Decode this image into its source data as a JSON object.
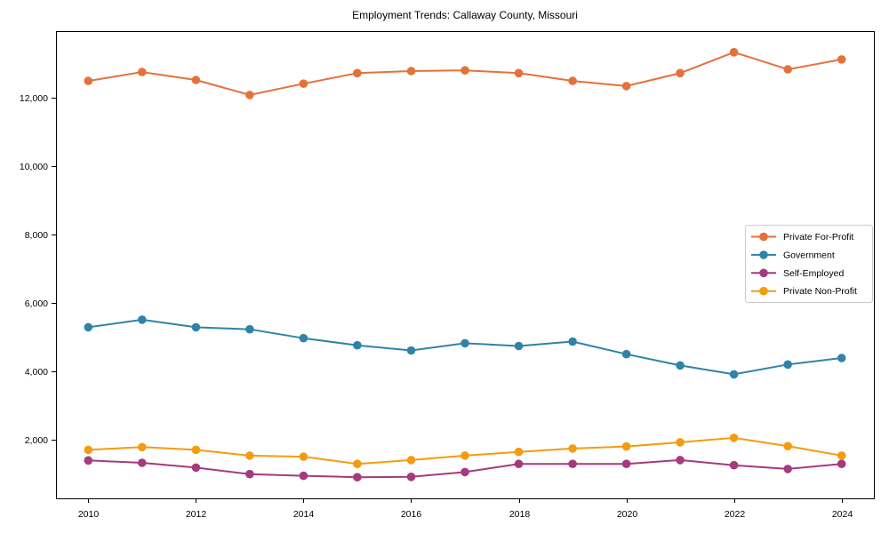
{
  "chart_data": {
    "type": "line",
    "title": "Employment Trends: Callaway County, Missouri",
    "xlabel": "",
    "ylabel": "",
    "x": [
      2010,
      2011,
      2012,
      2013,
      2014,
      2015,
      2016,
      2017,
      2018,
      2019,
      2020,
      2021,
      2022,
      2023,
      2024
    ],
    "series": [
      {
        "name": "Private For-Profit",
        "color": "#e5713a",
        "values": [
          12500,
          12760,
          12530,
          12090,
          12420,
          12730,
          12790,
          12810,
          12730,
          12500,
          12350,
          12730,
          13340,
          12840,
          13130
        ]
      },
      {
        "name": "Government",
        "color": "#3083a8",
        "values": [
          5290,
          5510,
          5290,
          5230,
          4970,
          4760,
          4610,
          4820,
          4740,
          4870,
          4500,
          4170,
          3910,
          4200,
          4390
        ]
      },
      {
        "name": "Self-Employed",
        "color": "#a53a7d",
        "values": [
          1390,
          1320,
          1180,
          990,
          940,
          900,
          910,
          1050,
          1290,
          1290,
          1290,
          1400,
          1250,
          1140,
          1290
        ]
      },
      {
        "name": "Private Non-Profit",
        "color": "#f39c10",
        "values": [
          1700,
          1780,
          1700,
          1530,
          1500,
          1290,
          1400,
          1530,
          1640,
          1740,
          1800,
          1920,
          2050,
          1810,
          1530
        ]
      }
    ],
    "xticks": [
      2010,
      2012,
      2014,
      2016,
      2018,
      2020,
      2022,
      2024
    ],
    "yticks": [
      2000,
      4000,
      6000,
      8000,
      10000,
      12000
    ],
    "xlim": [
      2009.4,
      2024.6
    ],
    "ylim": [
      280,
      13960
    ],
    "grid": false,
    "legend_position": "center-right",
    "axis_color": "#000000",
    "legend_border_color": "#cccccc"
  }
}
